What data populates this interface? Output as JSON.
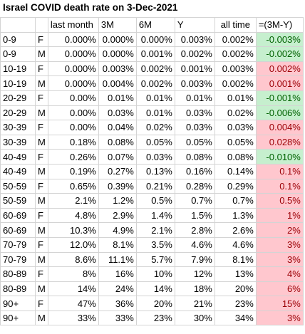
{
  "title": "Israel COVID death rate on 3-Dec-2021",
  "headers": [
    "",
    "",
    "last month",
    "3M",
    "6M",
    "Y",
    "all time",
    "=(3M-Y)"
  ],
  "rows": [
    {
      "age": "0-9",
      "sex": "F",
      "last_month": "0.000%",
      "m3": "0.000%",
      "m6": "0.000%",
      "y": "0.003%",
      "all_time": "0.002%",
      "diff": "-0.003%",
      "sign": "neg"
    },
    {
      "age": "0-9",
      "sex": "M",
      "last_month": "0.000%",
      "m3": "0.000%",
      "m6": "0.001%",
      "y": "0.002%",
      "all_time": "0.002%",
      "diff": "-0.002%",
      "sign": "neg"
    },
    {
      "age": "10-19",
      "sex": "F",
      "last_month": "0.000%",
      "m3": "0.003%",
      "m6": "0.002%",
      "y": "0.001%",
      "all_time": "0.003%",
      "diff": "0.002%",
      "sign": "pos"
    },
    {
      "age": "10-19",
      "sex": "M",
      "last_month": "0.000%",
      "m3": "0.004%",
      "m6": "0.002%",
      "y": "0.003%",
      "all_time": "0.002%",
      "diff": "0.001%",
      "sign": "pos"
    },
    {
      "age": "20-29",
      "sex": "F",
      "last_month": "0.00%",
      "m3": "0.01%",
      "m6": "0.01%",
      "y": "0.01%",
      "all_time": "0.01%",
      "diff": "-0.001%",
      "sign": "neg"
    },
    {
      "age": "20-29",
      "sex": "M",
      "last_month": "0.00%",
      "m3": "0.03%",
      "m6": "0.01%",
      "y": "0.03%",
      "all_time": "0.02%",
      "diff": "-0.006%",
      "sign": "neg"
    },
    {
      "age": "30-39",
      "sex": "F",
      "last_month": "0.00%",
      "m3": "0.04%",
      "m6": "0.02%",
      "y": "0.03%",
      "all_time": "0.03%",
      "diff": "0.004%",
      "sign": "pos"
    },
    {
      "age": "30-39",
      "sex": "M",
      "last_month": "0.18%",
      "m3": "0.08%",
      "m6": "0.05%",
      "y": "0.05%",
      "all_time": "0.05%",
      "diff": "0.028%",
      "sign": "pos"
    },
    {
      "age": "40-49",
      "sex": "F",
      "last_month": "0.26%",
      "m3": "0.07%",
      "m6": "0.03%",
      "y": "0.08%",
      "all_time": "0.08%",
      "diff": "-0.010%",
      "sign": "neg"
    },
    {
      "age": "40-49",
      "sex": "M",
      "last_month": "0.19%",
      "m3": "0.27%",
      "m6": "0.13%",
      "y": "0.16%",
      "all_time": "0.14%",
      "diff": "0.1%",
      "sign": "pos"
    },
    {
      "age": "50-59",
      "sex": "F",
      "last_month": "0.65%",
      "m3": "0.39%",
      "m6": "0.21%",
      "y": "0.28%",
      "all_time": "0.29%",
      "diff": "0.1%",
      "sign": "pos"
    },
    {
      "age": "50-59",
      "sex": "M",
      "last_month": "2.1%",
      "m3": "1.2%",
      "m6": "0.5%",
      "y": "0.7%",
      "all_time": "0.7%",
      "diff": "0.5%",
      "sign": "pos"
    },
    {
      "age": "60-69",
      "sex": "F",
      "last_month": "4.8%",
      "m3": "2.9%",
      "m6": "1.4%",
      "y": "1.5%",
      "all_time": "1.3%",
      "diff": "1%",
      "sign": "pos"
    },
    {
      "age": "60-69",
      "sex": "M",
      "last_month": "10.3%",
      "m3": "4.9%",
      "m6": "2.1%",
      "y": "2.8%",
      "all_time": "2.6%",
      "diff": "2%",
      "sign": "pos"
    },
    {
      "age": "70-79",
      "sex": "F",
      "last_month": "12.0%",
      "m3": "8.1%",
      "m6": "3.5%",
      "y": "4.6%",
      "all_time": "4.6%",
      "diff": "3%",
      "sign": "pos"
    },
    {
      "age": "70-79",
      "sex": "M",
      "last_month": "8.6%",
      "m3": "11.1%",
      "m6": "5.7%",
      "y": "7.9%",
      "all_time": "8.1%",
      "diff": "3%",
      "sign": "pos"
    },
    {
      "age": "80-89",
      "sex": "F",
      "last_month": "8%",
      "m3": "16%",
      "m6": "10%",
      "y": "12%",
      "all_time": "13%",
      "diff": "4%",
      "sign": "pos"
    },
    {
      "age": "80-89",
      "sex": "M",
      "last_month": "14%",
      "m3": "24%",
      "m6": "14%",
      "y": "18%",
      "all_time": "20%",
      "diff": "6%",
      "sign": "pos"
    },
    {
      "age": "90+",
      "sex": "F",
      "last_month": "47%",
      "m3": "36%",
      "m6": "20%",
      "y": "21%",
      "all_time": "23%",
      "diff": "15%",
      "sign": "pos"
    },
    {
      "age": "90+",
      "sex": "M",
      "last_month": "33%",
      "m3": "33%",
      "m6": "23%",
      "y": "30%",
      "all_time": "34%",
      "diff": "3%",
      "sign": "pos"
    }
  ],
  "colors": {
    "positive_fill": "#ffc7ce",
    "positive_text": "#9c0006",
    "negative_fill": "#c6efce",
    "negative_text": "#006100",
    "gridline": "#d4d4d4"
  }
}
